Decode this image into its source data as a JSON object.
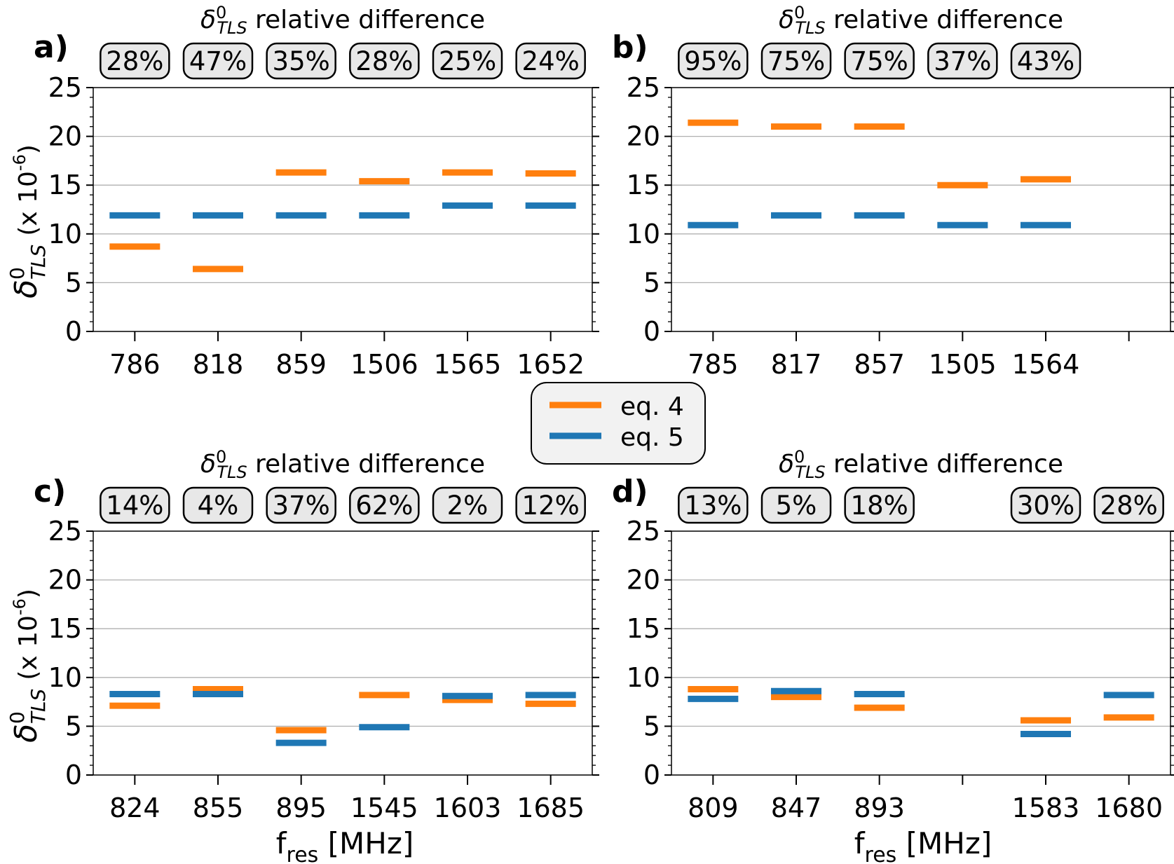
{
  "colors": {
    "eq4": "#ff7f0e",
    "eq5": "#1f77b4"
  },
  "figure": {
    "ylabel_symbol": "δ",
    "ylabel_sup": "0",
    "ylabel_sub": "TLS",
    "ylabel_unit_main": "(x 10",
    "ylabel_unit_exp": "-6",
    "ylabel_unit_close": ")",
    "xlabel_main": "f",
    "xlabel_sub": "res",
    "xlabel_unit": " [MHz]"
  },
  "legend": {
    "entries": [
      {
        "label": "eq. 4",
        "series": "eq4"
      },
      {
        "label": "eq. 5",
        "series": "eq5"
      }
    ]
  },
  "chart_data": [
    {
      "type": "scatter",
      "panel": "a)",
      "title_symbol": "δ",
      "title_sup": "0",
      "title_sub": "TLS",
      "title_rest": " relative difference",
      "categories": [
        "786",
        "818",
        "859",
        "1506",
        "1565",
        "1652"
      ],
      "relative_difference": [
        "28%",
        "47%",
        "35%",
        "28%",
        "25%",
        "24%"
      ],
      "series": [
        {
          "name": "eq. 4",
          "key": "eq4",
          "values": [
            8.7,
            6.4,
            16.3,
            15.4,
            16.3,
            16.2
          ]
        },
        {
          "name": "eq. 5",
          "key": "eq5",
          "values": [
            11.9,
            11.9,
            11.9,
            11.9,
            12.9,
            12.9
          ]
        }
      ],
      "yticks": [
        0,
        5,
        10,
        15,
        20,
        25
      ],
      "ylim": [
        0,
        25
      ],
      "grid": "y"
    },
    {
      "type": "scatter",
      "panel": "b)",
      "title_symbol": "δ",
      "title_sup": "0",
      "title_sub": "TLS",
      "title_rest": " relative difference",
      "categories": [
        "785",
        "817",
        "857",
        "1505",
        "1564",
        ""
      ],
      "relative_difference": [
        "95%",
        "75%",
        "75%",
        "37%",
        "43%",
        ""
      ],
      "series": [
        {
          "name": "eq. 4",
          "key": "eq4",
          "values": [
            21.4,
            21.0,
            21.0,
            15.0,
            15.6,
            null
          ]
        },
        {
          "name": "eq. 5",
          "key": "eq5",
          "values": [
            10.9,
            11.9,
            11.9,
            10.9,
            10.9,
            null
          ]
        }
      ],
      "yticks": [
        0,
        5,
        10,
        15,
        20,
        25
      ],
      "ylim": [
        0,
        25
      ],
      "grid": "y"
    },
    {
      "type": "scatter",
      "panel": "c)",
      "title_symbol": "δ",
      "title_sup": "0",
      "title_sub": "TLS",
      "title_rest": " relative difference",
      "categories": [
        "824",
        "855",
        "895",
        "1545",
        "1603",
        "1685"
      ],
      "relative_difference": [
        "14%",
        "4%",
        "37%",
        "62%",
        "2%",
        "12%"
      ],
      "series": [
        {
          "name": "eq. 4",
          "key": "eq4",
          "values": [
            7.1,
            8.8,
            4.6,
            8.2,
            7.7,
            7.3
          ]
        },
        {
          "name": "eq. 5",
          "key": "eq5",
          "values": [
            8.3,
            8.3,
            3.3,
            4.9,
            8.1,
            8.2
          ]
        }
      ],
      "yticks": [
        0,
        5,
        10,
        15,
        20,
        25
      ],
      "ylim": [
        0,
        25
      ],
      "grid": "y"
    },
    {
      "type": "scatter",
      "panel": "d)",
      "title_symbol": "δ",
      "title_sup": "0",
      "title_sub": "TLS",
      "title_rest": " relative difference",
      "categories": [
        "809",
        "847",
        "893",
        "",
        "1583",
        "1680"
      ],
      "relative_difference": [
        "13%",
        "5%",
        "18%",
        "",
        "30%",
        "28%"
      ],
      "series": [
        {
          "name": "eq. 4",
          "key": "eq4",
          "values": [
            8.8,
            8.0,
            6.9,
            null,
            5.6,
            5.9
          ]
        },
        {
          "name": "eq. 5",
          "key": "eq5",
          "values": [
            7.8,
            8.6,
            8.3,
            null,
            4.2,
            8.2
          ]
        }
      ],
      "yticks": [
        0,
        5,
        10,
        15,
        20,
        25
      ],
      "ylim": [
        0,
        25
      ],
      "grid": "y"
    }
  ]
}
